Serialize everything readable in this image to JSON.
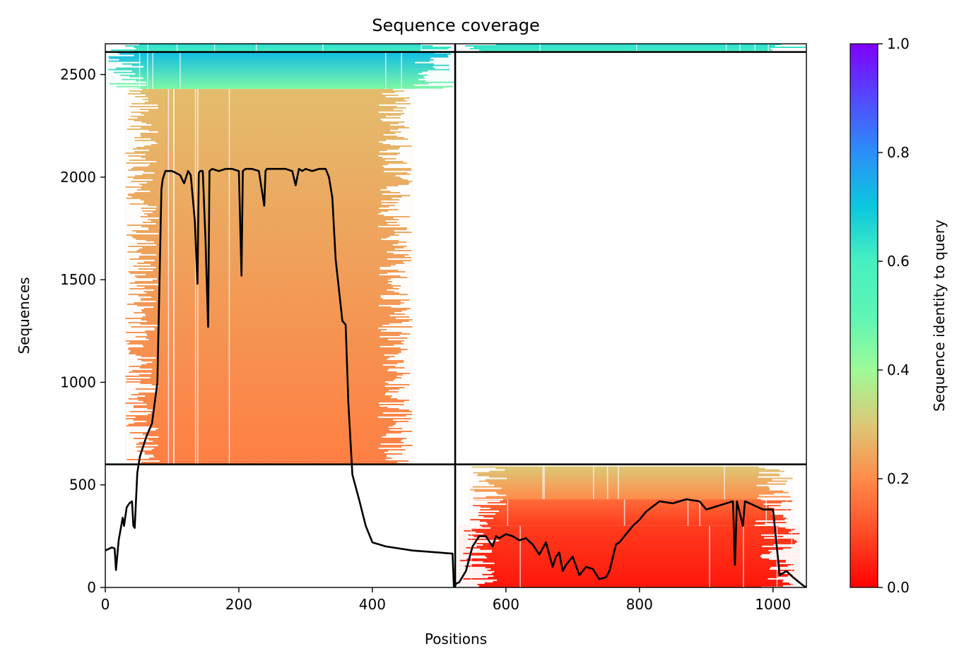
{
  "chart_data": {
    "type": "heatmap",
    "title": "Sequence coverage",
    "xlabel": "Positions",
    "ylabel": "Sequences",
    "colorbar_label": "Sequence identity to query",
    "xlim": [
      0,
      1050
    ],
    "ylim": [
      0,
      2650
    ],
    "x_ticks": [
      0,
      200,
      400,
      600,
      800,
      1000
    ],
    "y_ticks": [
      0,
      500,
      1000,
      1500,
      2000,
      2500
    ],
    "colorbar_range": [
      0,
      1
    ],
    "colorbar_ticks": [
      "0.0",
      "0.2",
      "0.4",
      "0.6",
      "0.8",
      "1.0"
    ],
    "colormap": "rainbow_r",
    "grid": false,
    "dividers": {
      "vertical_x": 524,
      "horizontal_y": [
        600,
        2610
      ]
    },
    "coverage_blocks": [
      {
        "region": "left-bottom",
        "x": [
          0,
          524
        ],
        "y": [
          0,
          600
        ],
        "filled": false
      },
      {
        "region": "left-middle",
        "x": [
          30,
          460
        ],
        "y": [
          600,
          2430
        ],
        "identity_range": [
          0.18,
          0.28
        ]
      },
      {
        "region": "left-top",
        "x": [
          0,
          524
        ],
        "y": [
          2430,
          2610
        ],
        "identity_range": [
          0.45,
          0.72
        ]
      },
      {
        "region": "left-cap",
        "x": [
          0,
          524
        ],
        "y": [
          2610,
          2650
        ],
        "identity_range": [
          0.6,
          0.65
        ]
      },
      {
        "region": "right-bottom-low",
        "x": [
          530,
          1040
        ],
        "y": [
          0,
          300
        ],
        "identity_range": [
          0.03,
          0.08
        ]
      },
      {
        "region": "right-bottom-mid",
        "x": [
          545,
          1030
        ],
        "y": [
          300,
          430
        ],
        "identity_range": [
          0.08,
          0.15
        ]
      },
      {
        "region": "right-bottom-high",
        "x": [
          545,
          1030
        ],
        "y": [
          430,
          590
        ],
        "identity_range": [
          0.2,
          0.3
        ]
      },
      {
        "region": "right-top",
        "x": [
          530,
          1050
        ],
        "y": [
          2610,
          2650
        ],
        "identity_range": [
          0.6,
          0.65
        ]
      }
    ],
    "coverage_line": {
      "color": "#000000",
      "x": [
        0,
        10,
        14,
        16,
        20,
        26,
        28,
        32,
        36,
        40,
        42,
        44,
        48,
        52,
        56,
        62,
        70,
        78,
        84,
        86,
        90,
        100,
        112,
        118,
        124,
        128,
        134,
        138,
        140,
        142,
        146,
        150,
        154,
        156,
        160,
        170,
        180,
        190,
        200,
        204,
        206,
        210,
        220,
        230,
        238,
        240,
        242,
        250,
        260,
        270,
        280,
        285,
        290,
        295,
        300,
        310,
        320,
        330,
        335,
        340,
        345,
        355,
        360,
        364,
        370,
        380,
        390,
        400,
        420,
        460,
        500,
        520,
        522,
        524,
        526,
        530,
        540,
        550,
        560,
        570,
        580,
        585,
        590,
        600,
        610,
        620,
        630,
        640,
        650,
        660,
        670,
        675,
        680,
        685,
        690,
        700,
        710,
        720,
        730,
        740,
        750,
        755,
        765,
        770,
        790,
        800,
        810,
        830,
        850,
        870,
        890,
        900,
        920,
        940,
        943,
        946,
        955,
        958,
        965,
        985,
        1000,
        1005,
        1010,
        1020,
        1030,
        1045,
        1050
      ],
      "y": [
        180,
        195,
        190,
        85,
        230,
        340,
        300,
        390,
        410,
        420,
        300,
        290,
        560,
        640,
        680,
        740,
        800,
        1000,
        1940,
        1990,
        2030,
        2030,
        2010,
        1970,
        2030,
        2010,
        1790,
        1480,
        2020,
        2030,
        2030,
        1700,
        1270,
        2030,
        2040,
        2030,
        2040,
        2040,
        2030,
        1520,
        2030,
        2040,
        2040,
        2030,
        1860,
        2030,
        2040,
        2040,
        2040,
        2040,
        2030,
        1960,
        2040,
        2030,
        2040,
        2030,
        2040,
        2040,
        2000,
        1900,
        1600,
        1300,
        1280,
        900,
        550,
        430,
        300,
        220,
        200,
        180,
        170,
        165,
        5,
        10,
        20,
        25,
        80,
        200,
        250,
        250,
        200,
        250,
        240,
        260,
        250,
        230,
        240,
        210,
        160,
        220,
        100,
        150,
        170,
        80,
        110,
        150,
        60,
        100,
        90,
        40,
        50,
        80,
        210,
        220,
        300,
        330,
        370,
        420,
        410,
        430,
        420,
        380,
        400,
        420,
        110,
        420,
        300,
        420,
        410,
        380,
        380,
        220,
        60,
        80,
        50,
        10,
        0
      ]
    }
  }
}
